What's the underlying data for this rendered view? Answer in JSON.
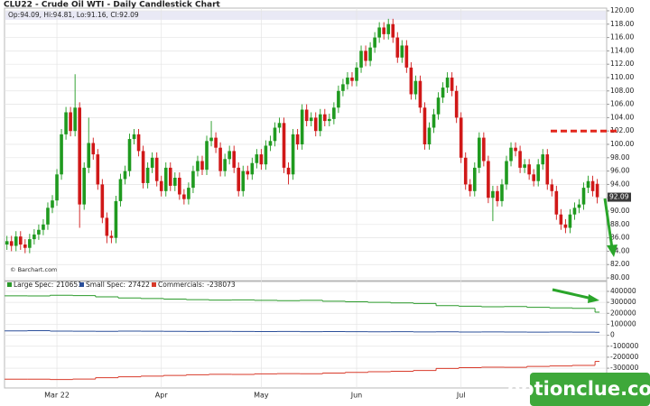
{
  "chart_data": [
    {
      "type": "candlestick",
      "title": "CLU22 - Crude Oil WTI - Daily Candlestick Chart",
      "ohlc_label": "Op:94.09, Hi:94.81, Lo:91.16, Cl:92.09",
      "credit": "© Barchart.com",
      "categories": [
        null,
        null,
        null,
        null,
        null,
        null,
        null,
        null,
        null,
        null,
        null,
        "Mar 22",
        null,
        null,
        null,
        null,
        null,
        null,
        null,
        null,
        null,
        null,
        null,
        null,
        null,
        null,
        null,
        null,
        null,
        null,
        null,
        null,
        null,
        null,
        "Apr",
        null,
        null,
        null,
        null,
        null,
        null,
        null,
        null,
        null,
        null,
        null,
        null,
        null,
        null,
        null,
        null,
        null,
        null,
        null,
        null,
        null,
        "May",
        null,
        null,
        null,
        null,
        null,
        null,
        null,
        null,
        null,
        null,
        null,
        null,
        null,
        null,
        null,
        null,
        null,
        null,
        null,
        null,
        "Jun",
        null,
        null,
        null,
        null,
        null,
        null,
        null,
        null,
        null,
        null,
        null,
        null,
        null,
        null,
        null,
        null,
        null,
        null,
        null,
        null,
        null,
        null,
        "Jul",
        null,
        null,
        null,
        null,
        null,
        null,
        null,
        null,
        null,
        null,
        null,
        null,
        null,
        null,
        null,
        null,
        null,
        null,
        null,
        null,
        null,
        null,
        null,
        null,
        null,
        null,
        null,
        null,
        null,
        null
      ],
      "open": [
        85.0,
        85.5,
        84.8,
        86.2,
        85.0,
        84.5,
        85.8,
        86.5,
        87.2,
        88.0,
        90.5,
        91.6,
        95.5,
        101.5,
        104.8,
        102.0,
        105.5,
        91.0,
        96.5,
        100.2,
        98.5,
        94.0,
        89.0,
        86.3,
        86.0,
        91.5,
        94.8,
        96.0,
        100.8,
        101.5,
        99.0,
        94.2,
        96.5,
        98.0,
        94.5,
        93.0,
        96.5,
        93.8,
        95.0,
        92.5,
        91.8,
        93.5,
        96.0,
        97.5,
        96.2,
        100.5,
        101.0,
        99.5,
        96.0,
        97.8,
        99.0,
        96.5,
        93.0,
        96.0,
        95.5,
        97.2,
        98.5,
        97.0,
        99.8,
        100.5,
        102.5,
        103.2,
        96.5,
        95.5,
        101.5,
        100.0,
        105.2,
        103.5,
        104.0,
        102.0,
        104.5,
        103.5,
        103.8,
        105.5,
        108.0,
        109.0,
        110.0,
        109.5,
        111.5,
        114.0,
        112.5,
        114.5,
        116.0,
        117.5,
        116.5,
        118.0,
        116.0,
        113.0,
        114.8,
        111.5,
        107.5,
        109.5,
        105.5,
        100.0,
        102.5,
        104.5,
        107.0,
        108.5,
        110.0,
        108.0,
        104.0,
        98.0,
        94.0,
        93.0,
        96.5,
        101.0,
        97.5,
        92.0,
        93.0,
        91.5,
        94.0,
        97.5,
        99.5,
        99.0,
        96.5,
        97.0,
        95.5,
        94.5,
        97.0,
        98.5,
        94.0,
        93.0,
        89.5,
        88.0,
        87.5,
        89.5,
        90.5,
        91.0,
        93.5,
        94.5,
        94.09
      ],
      "high": [
        86.3,
        86.3,
        87.0,
        87.0,
        85.8,
        86.6,
        87.3,
        88.0,
        88.8,
        91.3,
        92.4,
        96.3,
        102.3,
        105.6,
        105.6,
        110.5,
        106.3,
        97.3,
        104.0,
        101.0,
        99.3,
        94.8,
        89.8,
        87.1,
        92.3,
        95.6,
        96.8,
        101.6,
        102.3,
        102.3,
        99.8,
        97.3,
        98.8,
        98.8,
        95.3,
        97.3,
        97.3,
        95.8,
        95.8,
        93.3,
        94.3,
        96.8,
        98.3,
        98.3,
        101.3,
        103.5,
        101.8,
        100.3,
        98.6,
        99.8,
        99.8,
        97.3,
        96.8,
        96.8,
        98.0,
        99.3,
        99.3,
        100.6,
        101.3,
        103.3,
        104.0,
        104.0,
        97.3,
        102.3,
        102.3,
        106.0,
        106.0,
        104.8,
        104.8,
        105.3,
        105.3,
        104.6,
        106.3,
        108.8,
        109.8,
        110.8,
        110.8,
        112.3,
        114.8,
        114.8,
        115.3,
        116.8,
        118.3,
        118.3,
        118.8,
        118.8,
        116.8,
        115.6,
        115.6,
        112.3,
        110.3,
        110.3,
        106.3,
        103.3,
        105.3,
        107.8,
        109.3,
        110.8,
        110.8,
        108.8,
        104.8,
        98.8,
        94.8,
        97.3,
        101.8,
        101.8,
        98.3,
        93.8,
        93.8,
        94.8,
        98.3,
        100.3,
        100.3,
        99.8,
        97.8,
        97.8,
        96.3,
        97.8,
        99.3,
        99.3,
        94.8,
        93.8,
        90.3,
        88.8,
        90.3,
        91.3,
        91.8,
        94.3,
        95.3,
        95.3,
        94.81
      ],
      "low": [
        84.2,
        84.0,
        84.0,
        84.2,
        83.7,
        83.7,
        85.0,
        85.7,
        86.4,
        87.2,
        89.7,
        90.8,
        94.7,
        100.7,
        101.2,
        101.2,
        87.5,
        90.2,
        95.7,
        97.7,
        93.2,
        88.2,
        85.2,
        85.2,
        85.2,
        90.7,
        94.0,
        95.2,
        100.0,
        98.2,
        93.4,
        93.4,
        95.7,
        93.7,
        92.2,
        92.2,
        93.0,
        93.0,
        91.7,
        91.0,
        91.0,
        92.7,
        95.2,
        95.4,
        95.4,
        99.7,
        98.7,
        95.2,
        95.2,
        97.0,
        95.7,
        92.2,
        92.2,
        94.7,
        94.7,
        96.4,
        96.2,
        96.2,
        99.0,
        99.7,
        101.7,
        95.7,
        94.0,
        94.7,
        99.2,
        99.2,
        102.7,
        102.7,
        101.2,
        101.2,
        102.7,
        102.7,
        103.0,
        104.7,
        107.2,
        108.2,
        108.7,
        108.7,
        110.7,
        111.7,
        111.7,
        113.7,
        115.2,
        115.7,
        115.7,
        115.2,
        112.2,
        112.2,
        110.7,
        106.7,
        106.7,
        104.7,
        99.2,
        99.2,
        101.7,
        103.7,
        106.2,
        107.7,
        107.2,
        103.2,
        97.2,
        93.2,
        92.2,
        92.2,
        95.7,
        96.7,
        91.2,
        88.5,
        90.7,
        90.7,
        93.2,
        96.7,
        98.2,
        95.7,
        95.7,
        94.7,
        93.7,
        93.7,
        96.2,
        93.2,
        92.2,
        88.7,
        87.2,
        86.7,
        86.7,
        88.7,
        89.7,
        90.2,
        92.7,
        92.2,
        91.16
      ],
      "close": [
        85.5,
        84.8,
        86.2,
        85.0,
        84.5,
        85.8,
        86.5,
        87.2,
        88.0,
        90.5,
        91.6,
        95.5,
        101.5,
        104.8,
        102.0,
        105.5,
        91.0,
        96.5,
        100.2,
        98.5,
        94.0,
        89.0,
        86.3,
        86.0,
        91.5,
        94.8,
        96.0,
        100.8,
        101.5,
        99.0,
        94.2,
        96.5,
        98.0,
        94.5,
        93.0,
        96.5,
        93.8,
        95.0,
        92.5,
        91.8,
        93.5,
        96.0,
        97.5,
        96.2,
        100.5,
        101.0,
        99.5,
        96.0,
        97.8,
        99.0,
        96.5,
        93.0,
        96.0,
        95.5,
        97.2,
        98.5,
        97.0,
        99.8,
        100.5,
        102.5,
        103.2,
        96.5,
        95.5,
        101.5,
        100.0,
        105.2,
        103.5,
        104.0,
        102.0,
        104.5,
        103.5,
        103.8,
        105.5,
        108.0,
        109.0,
        110.0,
        109.5,
        111.5,
        114.0,
        112.5,
        114.5,
        116.0,
        117.5,
        116.5,
        118.0,
        116.0,
        113.0,
        114.8,
        111.5,
        107.5,
        109.5,
        105.5,
        100.0,
        102.5,
        104.5,
        107.0,
        108.5,
        110.0,
        108.0,
        104.0,
        98.0,
        94.0,
        93.0,
        96.5,
        101.0,
        97.5,
        92.0,
        93.0,
        91.5,
        94.0,
        97.5,
        99.5,
        99.0,
        96.5,
        97.0,
        95.5,
        94.5,
        97.0,
        98.5,
        94.0,
        93.0,
        89.5,
        88.0,
        87.5,
        89.5,
        90.5,
        91.0,
        93.5,
        94.5,
        93.0,
        92.09
      ],
      "up_color": "#1f9a1f",
      "down_color": "#d01818",
      "level_line": {
        "value": 102,
        "color": "#e2261c"
      },
      "ylim": [
        79.6,
        120.4
      ],
      "yticks": [
        {
          "value": 80,
          "label": "80.00"
        },
        {
          "value": 82,
          "label": "82.00"
        },
        {
          "value": 84,
          "label": "84.00"
        },
        {
          "value": 86,
          "label": "86.00"
        },
        {
          "value": 88,
          "label": "88.00"
        },
        {
          "value": 90,
          "label": "90.00"
        },
        {
          "value": 92,
          "label": "92.00"
        },
        {
          "value": 94,
          "label": "94.00"
        },
        {
          "value": 96,
          "label": "96.00"
        },
        {
          "value": 98,
          "label": "98.00"
        },
        {
          "value": 100,
          "label": "100.00"
        },
        {
          "value": 102,
          "label": "102.00"
        },
        {
          "value": 104,
          "label": "104.00"
        },
        {
          "value": 106,
          "label": "106.00"
        },
        {
          "value": 108,
          "label": "108.00"
        },
        {
          "value": 110,
          "label": "110.00"
        },
        {
          "value": 112,
          "label": "112.00"
        },
        {
          "value": 114,
          "label": "114.00"
        },
        {
          "value": 116,
          "label": "116.00"
        },
        {
          "value": 118,
          "label": "118.00"
        },
        {
          "value": 120,
          "label": "120.00"
        }
      ],
      "grid": true
    },
    {
      "type": "line",
      "step": true,
      "series": [
        {
          "name": "Large Spec:",
          "color": "#2a9a2a",
          "values": [
            360000,
            358000,
            365000,
            362000,
            350000,
            340000,
            335000,
            330000,
            325000,
            320000,
            322000,
            318000,
            315000,
            318000,
            310000,
            305000,
            300000,
            295000,
            290000,
            270000,
            265000,
            260000,
            262000,
            255000,
            250000,
            245000,
            210651
          ]
        },
        {
          "name": "Small Spec:",
          "color": "#2b4f9a",
          "values": [
            40000,
            42000,
            38000,
            37000,
            36000,
            38000,
            37000,
            36000,
            35000,
            36000,
            35000,
            34000,
            35000,
            33000,
            34000,
            33000,
            32000,
            33000,
            31000,
            32000,
            30000,
            31000,
            30000,
            29000,
            30000,
            29000,
            27422
          ]
        },
        {
          "name": "Commercials:",
          "color": "#d83a2a",
          "values": [
            -400000,
            -400000,
            -403000,
            -399000,
            -386000,
            -378000,
            -372000,
            -366000,
            -360000,
            -356000,
            -357000,
            -352000,
            -350000,
            -351000,
            -344000,
            -338000,
            -332000,
            -328000,
            -321000,
            -302000,
            -295000,
            -291000,
            -292000,
            -284000,
            -280000,
            -274000,
            -238073
          ]
        }
      ],
      "ylim": [
        -480000,
        490000
      ],
      "yticks": [
        -300000,
        -200000,
        -100000,
        0,
        100000,
        200000,
        300000,
        400000
      ],
      "grid": true
    }
  ],
  "watermark": "optionclue.com"
}
